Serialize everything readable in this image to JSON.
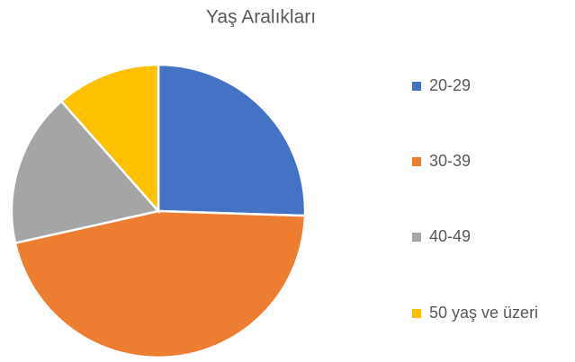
{
  "chart_data": {
    "type": "pie",
    "title": "Yaş Aralıkları",
    "categories": [
      "20-29",
      "30-39",
      "40-49",
      "50 yaş ve üzeri"
    ],
    "values": [
      25.5,
      46,
      17,
      11.5
    ],
    "colors": [
      "#4472c4",
      "#ed7d31",
      "#a5a5a5",
      "#ffc000"
    ],
    "legend": "right"
  }
}
